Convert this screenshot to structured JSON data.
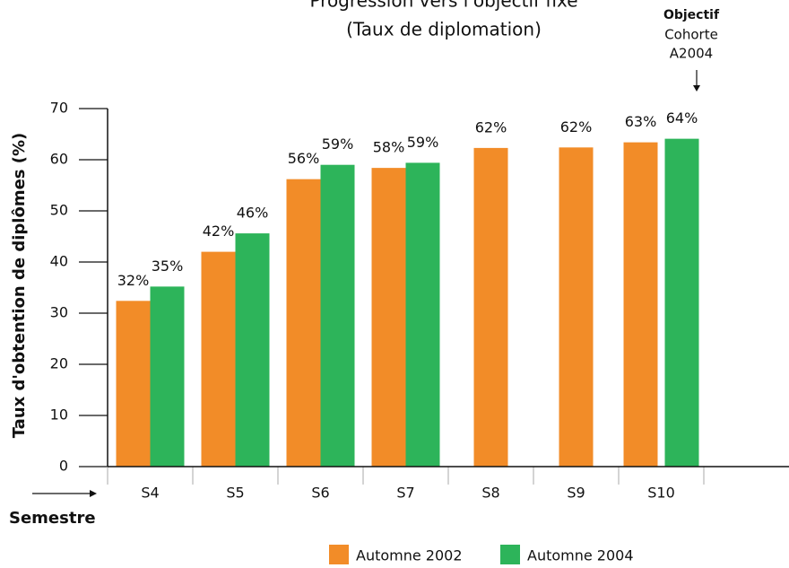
{
  "chart_data": {
    "type": "bar",
    "title": "Progression vers l'objectif fixé",
    "subtitle": "(Taux de diplomation)",
    "annotation": {
      "title": "Objectif",
      "lines": [
        "Cohorte",
        "A2004"
      ]
    },
    "y_label": "Taux d'obtention de diplômes (%)",
    "x_label": "Semestre",
    "categories": [
      "S4",
      "S5",
      "S6",
      "S7",
      "S8",
      "S9",
      "S10"
    ],
    "series": [
      {
        "name": "Automne 2002",
        "color": "#f28c28",
        "values": [
          32.4,
          42,
          56.2,
          58.4,
          62.3,
          62.4,
          63.4
        ],
        "value_labels": [
          "32%",
          "42%",
          "56%",
          "58%",
          "62%",
          "62%",
          "63%"
        ]
      },
      {
        "name": "Automne 2004",
        "color": "#2db45a",
        "values": [
          35.2,
          45.6,
          59,
          59.4,
          null,
          null,
          64.1
        ],
        "value_labels": [
          "35%",
          "46%",
          "59%",
          "59%",
          null,
          null,
          "64%"
        ]
      }
    ],
    "ylim": [
      0,
      70
    ],
    "yticks": [
      0,
      10,
      20,
      30,
      40,
      50,
      60,
      70
    ]
  }
}
